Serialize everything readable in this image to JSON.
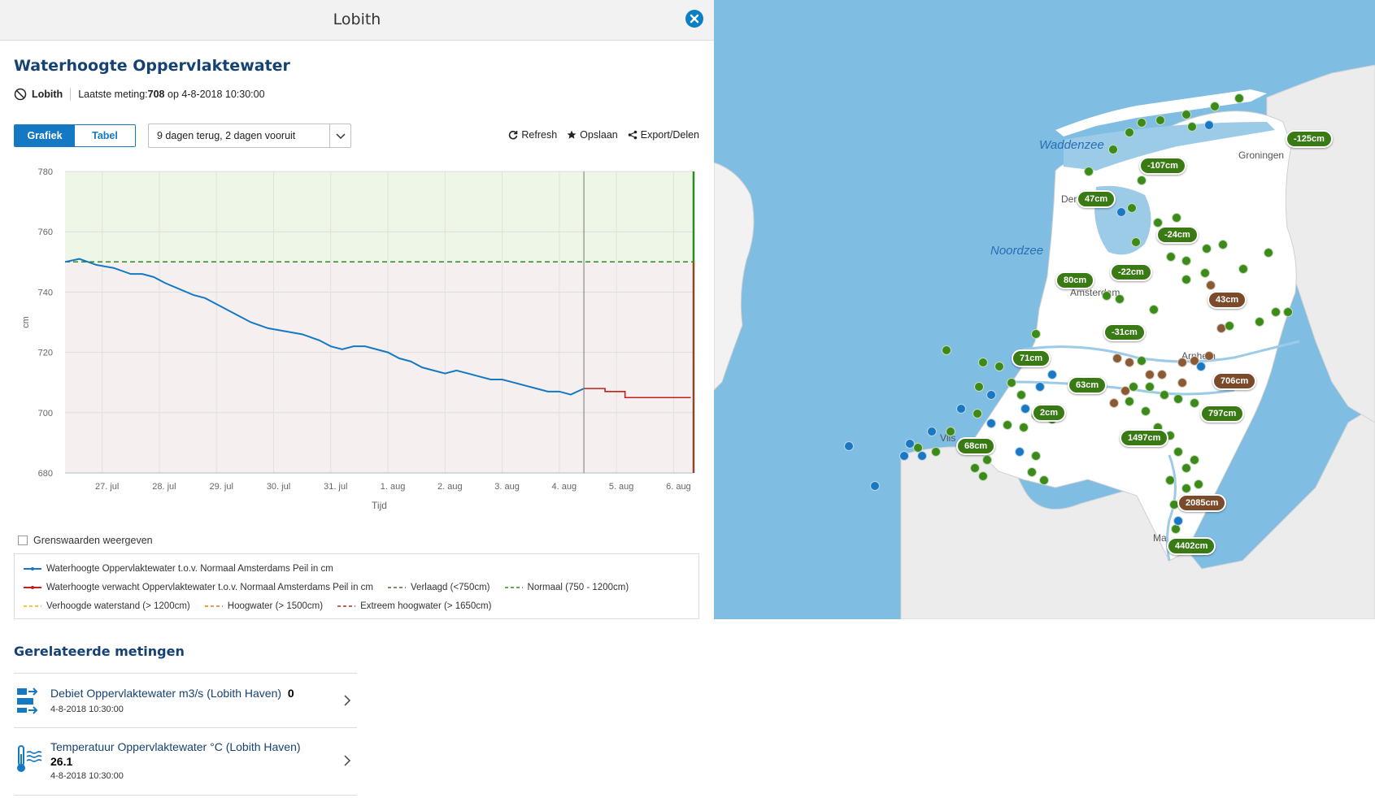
{
  "panel": {
    "title": "Lobith",
    "section_title": "Waterhoogte Oppervlaktewater",
    "location": "Lobith",
    "last_label": "Laatste meting:",
    "last_value": "708",
    "last_suffix": " op 4-8-2018 10:30:00",
    "toggle": {
      "chart": "Grafiek",
      "table": "Tabel",
      "active": "Grafiek"
    },
    "range_select": "9 dagen terug, 2 dagen vooruit",
    "actions": {
      "refresh": "Refresh",
      "save": "Opslaan",
      "share": "Export/Delen"
    },
    "show_limits": "Grenswaarden weergeven",
    "legend": {
      "measured": "Waterhoogte Oppervlaktewater t.o.v. Normaal Amsterdams Peil in cm",
      "forecast": "Waterhoogte verwacht Oppervlaktewater t.o.v. Normaal Amsterdams Peil in cm",
      "lowered": "Verlaagd (<750cm)",
      "normal": "Normaal (750 - 1200cm)",
      "raised": "Verhoogde waterstand (> 1200cm)",
      "high": "Hoogwater (> 1500cm)",
      "extreme": "Extreem hoogwater (> 1650cm)"
    },
    "related_title": "Gerelateerde metingen",
    "related": [
      {
        "label": "Debiet Oppervlaktewater m3/s (Lobith Haven)",
        "value": "0",
        "date": "4-8-2018 10:30:00"
      },
      {
        "label": "Temperatuur Oppervlaktewater °C (Lobith Haven)",
        "value": "26.1",
        "date": "4-8-2018 10:30:00"
      }
    ]
  },
  "chart_data": {
    "type": "line",
    "xlabel": "Tijd",
    "ylabel": "cm",
    "ylim": [
      680,
      780
    ],
    "yticks": [
      680,
      700,
      720,
      740,
      760,
      780
    ],
    "x_ticks": [
      "27. jul",
      "28. jul",
      "29. jul",
      "30. jul",
      "31. jul",
      "1. aug",
      "2. aug",
      "3. aug",
      "4. aug",
      "5. aug",
      "6. aug"
    ],
    "xlim_days": [
      26.35,
      37.35
    ],
    "now_day": 35.43,
    "end_day": 37.5,
    "normal_threshold": 750,
    "series": [
      {
        "name": "Waterhoogte Oppervlaktewater t.o.v. Normaal Amsterdams Peil in cm",
        "color": "#1479c2",
        "x": [
          26.35,
          26.6,
          26.9,
          27.2,
          27.5,
          27.7,
          27.9,
          28.1,
          28.35,
          28.6,
          28.8,
          29.0,
          29.3,
          29.6,
          29.9,
          30.2,
          30.5,
          30.8,
          31.0,
          31.2,
          31.4,
          31.6,
          31.8,
          32.0,
          32.2,
          32.4,
          32.6,
          32.8,
          33.0,
          33.2,
          33.4,
          33.6,
          33.8,
          34.0,
          34.2,
          34.4,
          34.6,
          34.8,
          35.0,
          35.2,
          35.43
        ],
        "y": [
          750,
          751,
          749,
          748,
          746,
          746,
          745,
          743,
          741,
          739,
          738,
          736,
          733,
          730,
          728,
          727,
          726,
          724,
          722,
          721,
          722,
          722,
          721,
          720,
          718,
          717,
          715,
          714,
          713,
          714,
          713,
          712,
          711,
          711,
          710,
          709,
          708,
          707,
          707,
          706,
          708
        ]
      },
      {
        "name": "Waterhoogte verwacht Oppervlaktewater t.o.v. Normaal Amsterdams Peil in cm",
        "color": "#c0211f",
        "x": [
          35.43,
          35.75,
          35.8,
          36.1,
          36.15,
          37.3
        ],
        "y": [
          708,
          708,
          707,
          707,
          705,
          705
        ]
      }
    ]
  },
  "map": {
    "labels": {
      "waddenzee": "Waddenzee",
      "noordzee": "Noordzee",
      "groningen": "Groningen",
      "amsterdam": "Amsterdam",
      "den": "Den",
      "vlis": "Vlis",
      "arnhem": "Arnhem",
      "ma": "Ma"
    },
    "bubbles": [
      {
        "text": "-125cm",
        "color": "green"
      },
      {
        "text": "-107cm",
        "color": "green"
      },
      {
        "text": "47cm",
        "color": "green"
      },
      {
        "text": "-24cm",
        "color": "green"
      },
      {
        "text": "-22cm",
        "color": "green"
      },
      {
        "text": "80cm",
        "color": "green"
      },
      {
        "text": "43cm",
        "color": "brown"
      },
      {
        "text": "-31cm",
        "color": "green"
      },
      {
        "text": "71cm",
        "color": "green"
      },
      {
        "text": "706cm",
        "color": "brown"
      },
      {
        "text": "63cm",
        "color": "green"
      },
      {
        "text": "2cm",
        "color": "green"
      },
      {
        "text": "797cm",
        "color": "green"
      },
      {
        "text": "68cm",
        "color": "green"
      },
      {
        "text": "1497cm",
        "color": "green"
      },
      {
        "text": "2085cm",
        "color": "brown"
      },
      {
        "text": "4402cm",
        "color": "green"
      }
    ]
  },
  "colors": {
    "primary": "#1479c2",
    "title": "#154273",
    "normal_zone": "#eef6e8",
    "lowered_zone": "#f5f0ef",
    "normal_line": "#2e8b1f",
    "forecast_line": "#c0211f",
    "sea": "#80bde3"
  },
  "icons": [
    "close-icon",
    "location-icon",
    "refresh-icon",
    "star-icon",
    "share-icon",
    "chevron-down-icon",
    "flow-icon",
    "thermometer-icon",
    "chevron-right-icon"
  ]
}
